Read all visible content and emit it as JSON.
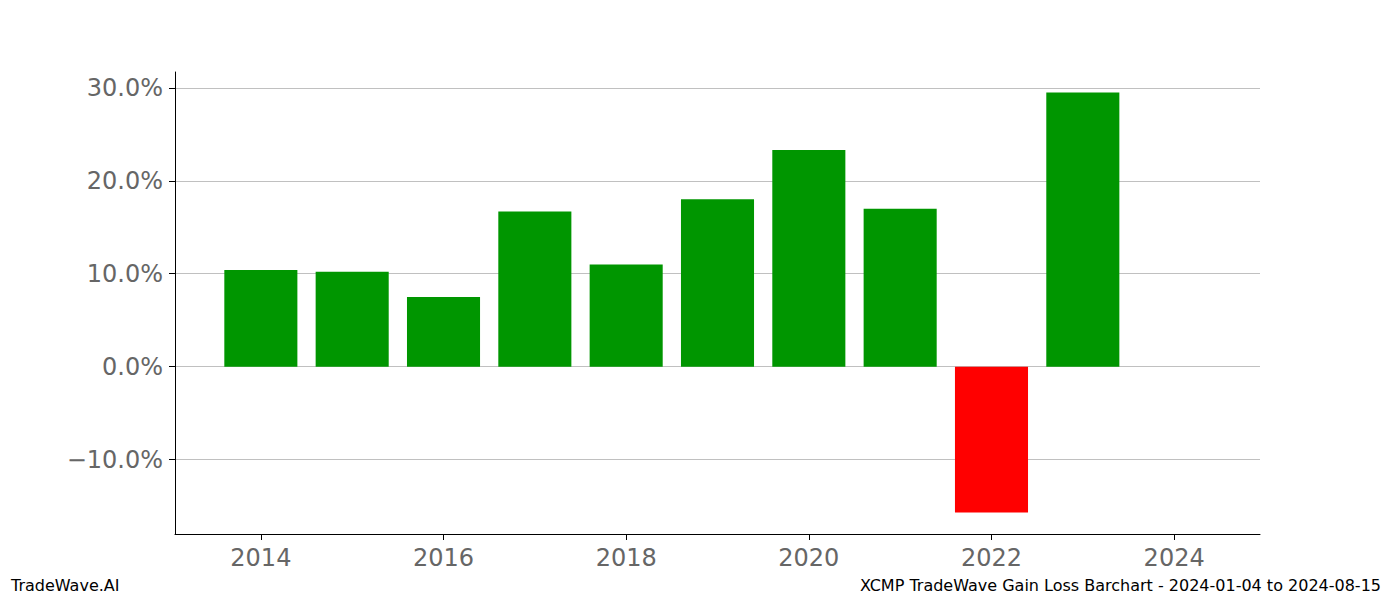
{
  "chart_data": {
    "type": "bar",
    "title": "XCMP TradeWave Gain Loss Barchart - 2024-01-04 to 2024-08-15",
    "annotations": [
      "TradeWave.AI"
    ],
    "x": [
      2014,
      2015,
      2016,
      2017,
      2018,
      2019,
      2020,
      2021,
      2022,
      2023
    ],
    "values": [
      10.4,
      10.2,
      7.5,
      16.7,
      11.0,
      18.0,
      23.3,
      17.0,
      -15.7,
      29.5
    ],
    "colors": [
      "#009600",
      "#009600",
      "#009600",
      "#009600",
      "#009600",
      "#009600",
      "#009600",
      "#009600",
      "#ff0000",
      "#009600"
    ],
    "xlim": [
      2013.06,
      2024.94
    ],
    "xticks": [
      2014,
      2016,
      2018,
      2020,
      2022,
      2024
    ],
    "ylim": [
      -18.0,
      31.7
    ],
    "yticks": [
      {
        "value": -10,
        "label": "−10.0%"
      },
      {
        "value": 0,
        "label": "0.0%"
      },
      {
        "value": 10,
        "label": "10.0%"
      },
      {
        "value": 20,
        "label": "20.0%"
      },
      {
        "value": 30,
        "label": "30.0%"
      }
    ],
    "grid": true
  }
}
